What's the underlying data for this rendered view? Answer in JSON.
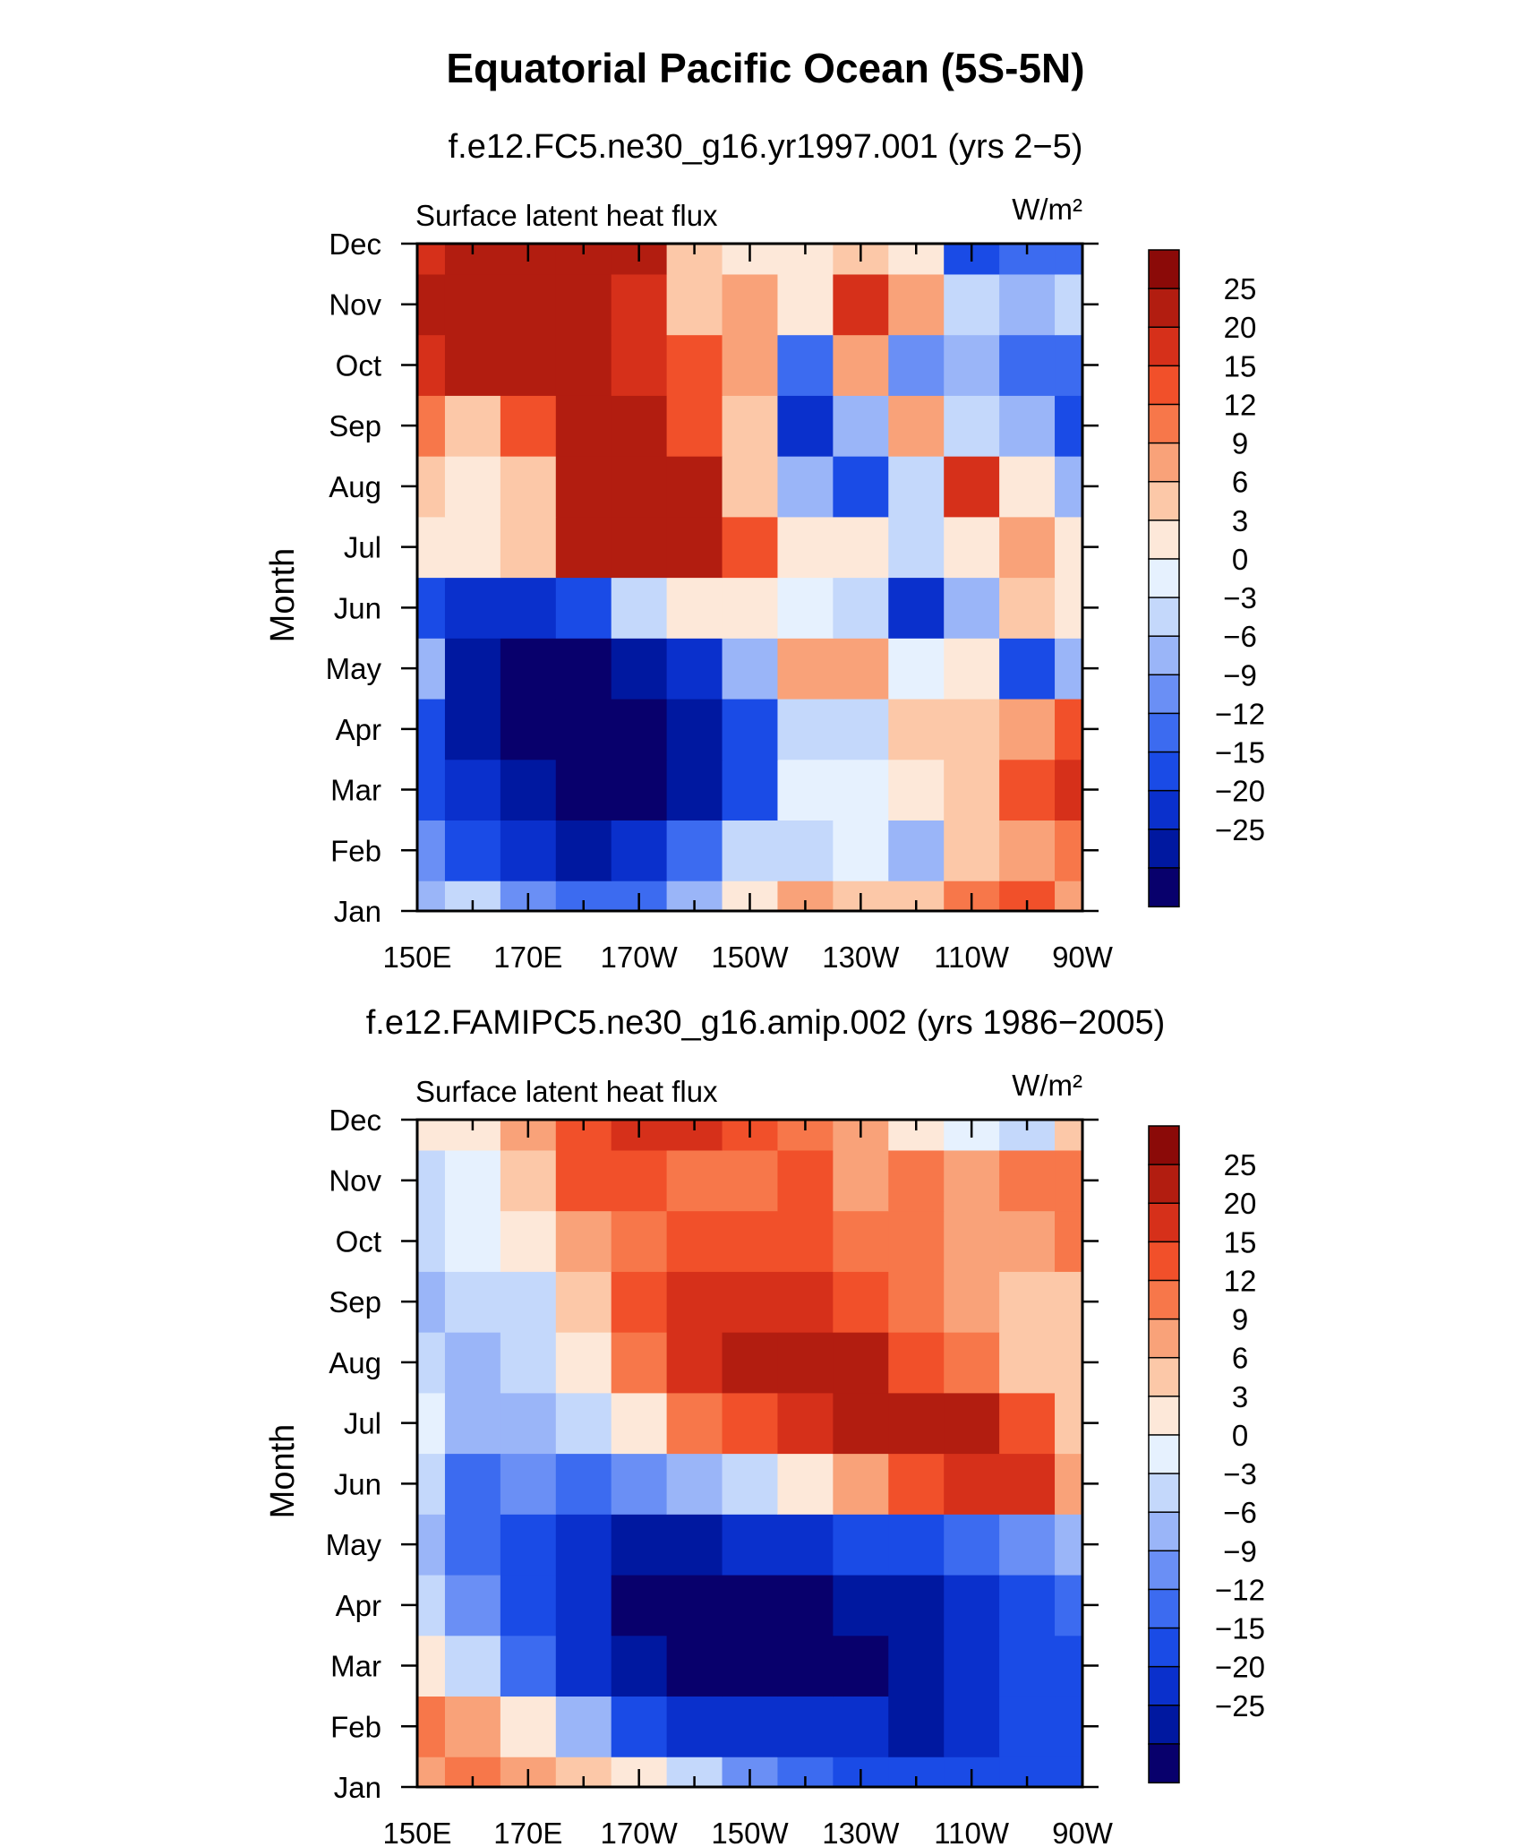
{
  "figure": {
    "title": "Equatorial Pacific Ocean (5S-5N)"
  },
  "colorbar_levels": [
    "25",
    "20",
    "15",
    "12",
    "9",
    "6",
    "3",
    "0",
    "−3",
    "−6",
    "−9",
    "−12",
    "−15",
    "−20",
    "−25"
  ],
  "colorbar_colors": [
    "#08006c",
    "#0018a0",
    "#0a30cc",
    "#1a4be6",
    "#3c6bf0",
    "#6a8ff5",
    "#9ab5f8",
    "#c4d8fb",
    "#e6f1fe",
    "#fde8d9",
    "#fcc8a8",
    "#f9a279",
    "#f7774a",
    "#f1502a",
    "#d6301a",
    "#b21d10",
    "#8b0a08"
  ],
  "chart_data": [
    {
      "type": "heatmap",
      "title": "f.e12.FC5.ne30_g16.yr1997.001 (yrs 2−5)",
      "left_label": "Surface latent heat flux",
      "units": "W/m²",
      "xlabel": "",
      "ylabel": "Month",
      "x_ticks": [
        "150E",
        "170E",
        "170W",
        "150W",
        "130W",
        "110W",
        "90W"
      ],
      "x_range": [
        "150E",
        "90W"
      ],
      "y_ticks": [
        "Jan",
        "Feb",
        "Mar",
        "Apr",
        "May",
        "Jun",
        "Jul",
        "Aug",
        "Sep",
        "Oct",
        "Nov",
        "Dec"
      ],
      "contour_levels": [
        -25,
        -20,
        -15,
        -12,
        -9,
        -6,
        -3,
        0,
        3,
        6,
        9,
        12,
        15,
        20,
        25
      ],
      "grid_columns": [
        "150E",
        "160E",
        "170E",
        "180",
        "170W",
        "160W",
        "150W",
        "140W",
        "130W",
        "120W",
        "110W",
        "100W",
        "90W"
      ],
      "grid_rows": [
        "Jan",
        "Feb",
        "Mar",
        "Apr",
        "May",
        "Jun",
        "Jul",
        "Aug",
        "Sep",
        "Oct",
        "Nov",
        "Dec"
      ],
      "values": [
        [
          -6,
          -3,
          -9,
          -12,
          -12,
          -6,
          3,
          9,
          6,
          6,
          12,
          15,
          9
        ],
        [
          -9,
          -15,
          -20,
          -25,
          -20,
          -12,
          -3,
          -3,
          0,
          -6,
          6,
          9,
          12
        ],
        [
          -15,
          -20,
          -25,
          -30,
          -30,
          -25,
          -15,
          0,
          0,
          3,
          6,
          15,
          22
        ],
        [
          -15,
          -25,
          -30,
          -30,
          -30,
          -25,
          -15,
          -3,
          -3,
          6,
          6,
          9,
          15
        ],
        [
          -6,
          -25,
          -30,
          -30,
          -25,
          -20,
          -6,
          9,
          9,
          0,
          3,
          -15,
          -6
        ],
        [
          -15,
          -20,
          -20,
          -15,
          -3,
          3,
          3,
          0,
          -3,
          -20,
          -6,
          6,
          3
        ],
        [
          3,
          3,
          6,
          25,
          25,
          25,
          15,
          3,
          3,
          -3,
          3,
          9,
          3
        ],
        [
          6,
          3,
          6,
          30,
          30,
          30,
          6,
          -6,
          -15,
          -3,
          20,
          3,
          -6
        ],
        [
          12,
          6,
          15,
          30,
          30,
          15,
          6,
          -20,
          -6,
          9,
          -3,
          -6,
          -15
        ],
        [
          20,
          30,
          30,
          30,
          20,
          15,
          9,
          -12,
          9,
          -9,
          -6,
          -12,
          -12
        ],
        [
          25,
          30,
          30,
          30,
          20,
          6,
          9,
          3,
          20,
          9,
          -3,
          -6,
          -3
        ],
        [
          20,
          25,
          25,
          25,
          25,
          6,
          3,
          3,
          6,
          3,
          -15,
          -12,
          -12
        ]
      ]
    },
    {
      "type": "heatmap",
      "title": "f.e12.FAMIPC5.ne30_g16.amip.002 (yrs 1986−2005)",
      "left_label": "Surface latent heat flux",
      "units": "W/m²",
      "xlabel": "",
      "ylabel": "Month",
      "x_ticks": [
        "150E",
        "170E",
        "170W",
        "150W",
        "130W",
        "110W",
        "90W"
      ],
      "x_range": [
        "150E",
        "90W"
      ],
      "y_ticks": [
        "Jan",
        "Feb",
        "Mar",
        "Apr",
        "May",
        "Jun",
        "Jul",
        "Aug",
        "Sep",
        "Oct",
        "Nov",
        "Dec"
      ],
      "contour_levels": [
        -25,
        -20,
        -15,
        -12,
        -9,
        -6,
        -3,
        0,
        3,
        6,
        9,
        12,
        15,
        20,
        25
      ],
      "grid_columns": [
        "150E",
        "160E",
        "170E",
        "180",
        "170W",
        "160W",
        "150W",
        "140W",
        "130W",
        "120W",
        "110W",
        "100W",
        "90W"
      ],
      "grid_rows": [
        "Jan",
        "Feb",
        "Mar",
        "Apr",
        "May",
        "Jun",
        "Jul",
        "Aug",
        "Sep",
        "Oct",
        "Nov",
        "Dec"
      ],
      "values": [
        [
          9,
          12,
          9,
          6,
          3,
          -3,
          -9,
          -12,
          -15,
          -15,
          -15,
          -15,
          -15
        ],
        [
          12,
          9,
          3,
          -6,
          -15,
          -20,
          -20,
          -20,
          -20,
          -25,
          -20,
          -15,
          -15
        ],
        [
          3,
          -3,
          -12,
          -20,
          -25,
          -30,
          -30,
          -30,
          -30,
          -25,
          -20,
          -15,
          -15
        ],
        [
          -3,
          -9,
          -15,
          -20,
          -30,
          -30,
          -30,
          -30,
          -25,
          -25,
          -20,
          -15,
          -12
        ],
        [
          -6,
          -12,
          -15,
          -20,
          -25,
          -25,
          -20,
          -20,
          -15,
          -15,
          -12,
          -9,
          -6
        ],
        [
          -3,
          -12,
          -9,
          -12,
          -9,
          -6,
          -3,
          3,
          9,
          15,
          20,
          20,
          9
        ],
        [
          0,
          -6,
          -6,
          -3,
          3,
          12,
          15,
          20,
          25,
          25,
          25,
          15,
          6
        ],
        [
          -3,
          -6,
          -3,
          3,
          12,
          20,
          25,
          30,
          25,
          15,
          12,
          6,
          6
        ],
        [
          -6,
          -3,
          -3,
          6,
          15,
          20,
          20,
          20,
          15,
          12,
          9,
          6,
          6
        ],
        [
          -3,
          0,
          3,
          9,
          12,
          15,
          15,
          15,
          12,
          12,
          9,
          9,
          12
        ],
        [
          -3,
          0,
          6,
          15,
          15,
          12,
          12,
          15,
          9,
          12,
          9,
          12,
          12
        ],
        [
          3,
          3,
          9,
          15,
          20,
          20,
          15,
          12,
          9,
          3,
          0,
          -3,
          6
        ]
      ]
    }
  ]
}
